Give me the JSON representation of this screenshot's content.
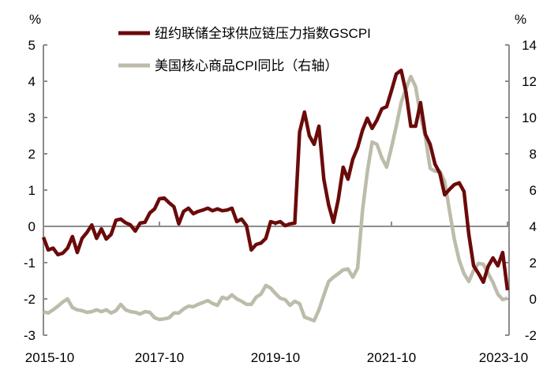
{
  "chart_data": {
    "type": "line",
    "title": "",
    "frequency": "monthly",
    "start_month": "2015-10",
    "end_month": "2023-10",
    "x_tick_labels": [
      "2015-10",
      "2017-10",
      "2019-10",
      "2021-10",
      "2023-10"
    ],
    "left_axis": {
      "unit": "%",
      "ylim": [
        -3,
        5
      ],
      "ticks": [
        "5",
        "4",
        "3",
        "2",
        "1",
        "0",
        "-1",
        "-2",
        "-3"
      ]
    },
    "right_axis": {
      "unit": "%",
      "ylim": [
        -2,
        14
      ],
      "ticks": [
        "14",
        "12",
        "10",
        "8",
        "6",
        "4",
        "2",
        "0",
        "-2"
      ]
    },
    "legend_position": "top-center",
    "grid": false,
    "series": [
      {
        "name": "纽约联储全球供应链压力指数GSCPI",
        "axis": "left",
        "color": "#6B0A0A",
        "values": [
          -0.3,
          -0.65,
          -0.6,
          -0.78,
          -0.74,
          -0.6,
          -0.28,
          -0.72,
          -0.33,
          -0.17,
          0.04,
          -0.33,
          -0.07,
          -0.35,
          -0.22,
          0.17,
          0.2,
          0.1,
          0.04,
          -0.13,
          0.09,
          0.11,
          0.37,
          0.48,
          0.76,
          0.78,
          0.65,
          0.54,
          0.07,
          0.41,
          0.5,
          0.35,
          0.41,
          0.45,
          0.5,
          0.43,
          0.48,
          0.43,
          0.45,
          0.5,
          0.13,
          0.2,
          0.02,
          -0.65,
          -0.5,
          -0.46,
          -0.33,
          0.13,
          0.09,
          0.13,
          0.02,
          0.07,
          0.09,
          2.6,
          3.15,
          2.5,
          2.26,
          2.76,
          1.3,
          0.59,
          0.11,
          0.74,
          1.63,
          1.3,
          1.85,
          2.17,
          2.65,
          2.98,
          2.7,
          2.93,
          3.24,
          3.3,
          3.74,
          4.2,
          4.3,
          3.7,
          2.76,
          2.76,
          3.41,
          2.54,
          2.26,
          1.72,
          1.46,
          0.87,
          1.02,
          1.15,
          1.2,
          0.96,
          -0.22,
          -1.09,
          -1.3,
          -1.54,
          -1.1,
          -0.87,
          -1.09,
          -0.72,
          -1.76
        ]
      },
      {
        "name": "美国核心商品CPI同比（右轴）",
        "axis": "right",
        "color": "#BDBBAA",
        "values": [
          -0.7,
          -0.78,
          -0.6,
          -0.4,
          -0.17,
          0,
          -0.48,
          -0.6,
          -0.65,
          -0.74,
          -0.7,
          -0.6,
          -0.7,
          -0.6,
          -0.78,
          -0.65,
          -0.3,
          -0.6,
          -0.7,
          -0.74,
          -0.83,
          -0.7,
          -0.74,
          -1.04,
          -1.13,
          -1.1,
          -1.04,
          -0.78,
          -0.78,
          -0.55,
          -0.4,
          -0.43,
          -0.3,
          -0.2,
          -0.09,
          -0.25,
          -0.35,
          0.09,
          0,
          0.22,
          0,
          -0.13,
          -0.3,
          -0.3,
          0.09,
          0.26,
          0.74,
          0.6,
          0.3,
          0.04,
          -0.04,
          -0.35,
          -0.13,
          -0.26,
          -1.0,
          -1.1,
          -1.2,
          -0.6,
          0.2,
          0.96,
          1.2,
          1.39,
          1.6,
          1.65,
          1.2,
          1.7,
          4.87,
          7.0,
          8.65,
          8.52,
          7.78,
          7.26,
          8.35,
          9.52,
          10.83,
          11.6,
          12.26,
          11.7,
          10.1,
          8.96,
          7.2,
          7.04,
          7.04,
          6.48,
          4.87,
          3.3,
          2.13,
          1.39,
          0.96,
          1.57,
          1.96,
          1.91,
          1.4,
          0.91,
          0.26,
          -0.04,
          0.04
        ]
      }
    ]
  }
}
